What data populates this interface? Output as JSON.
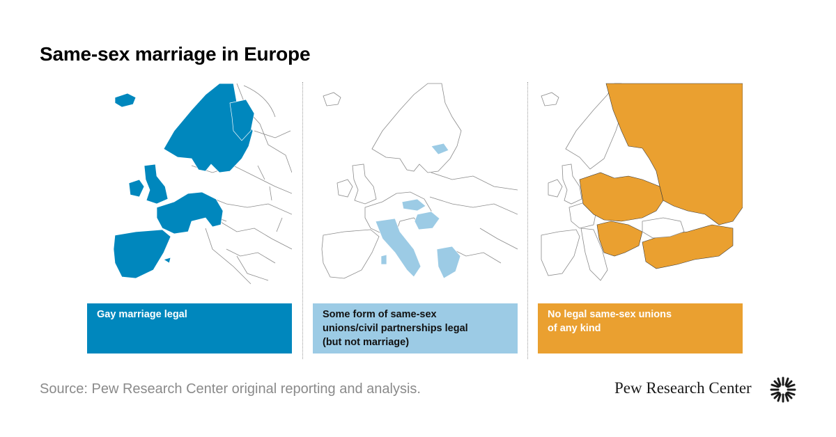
{
  "title": "Same-sex marriage in Europe",
  "panels": [
    {
      "category": "Gay marriage legal",
      "color": "#0087bd",
      "text_color": "#ffffff"
    },
    {
      "category": "Some form of same-sex unions/civil partnerships legal (but not marriage)",
      "color": "#9ccbe5",
      "text_color": "#111111"
    },
    {
      "category": "No legal same-sex unions of any kind",
      "color": "#eaa030",
      "text_color": "#ffffff"
    }
  ],
  "legend": {
    "legal": [
      "Gay marriage legal"
    ],
    "partial": [
      "Some form of same-sex",
      "unions/civil partnerships legal",
      "(but not marriage)"
    ],
    "none": [
      "No legal same-sex unions",
      "of any kind"
    ]
  },
  "source": "Source: Pew Research Center original reporting and analysis.",
  "brand": "Pew Research Center",
  "colors": {
    "map_fill": "#ffffff",
    "border": "#7a7a7a",
    "divider": "#9a9a9a"
  }
}
